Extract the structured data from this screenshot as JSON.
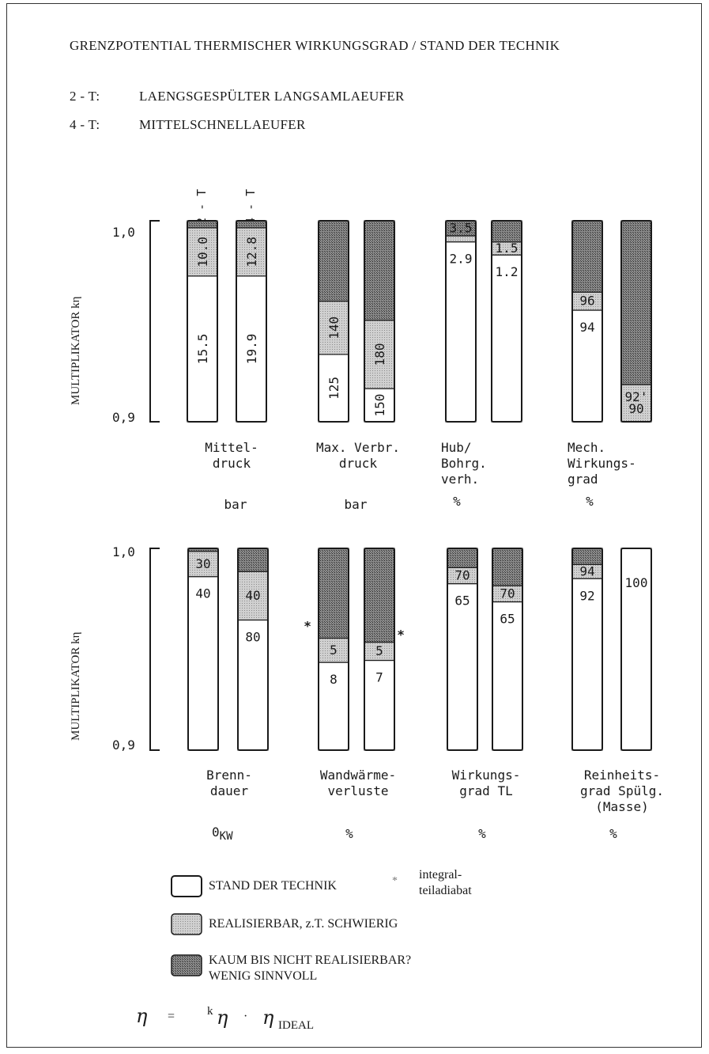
{
  "header": {
    "title": "GRENZPOTENTIAL THERMISCHER WIRKUNGSGRAD / STAND DER TECHNIK",
    "line2_key": "2 - T:",
    "line2_text": "LAENGSGESPÜLTER LANGSAMLAEUFER",
    "line4_key": "4 - T:",
    "line4_text": "MITTELSCHNELLAEUFER"
  },
  "series_tags": {
    "two_stroke": "2 - T",
    "four_stroke": "4 - T"
  },
  "colors": {
    "stand": "#ffffff",
    "realisierbar": "#c8c8c8",
    "kaum": "#6e6e6e",
    "outline": "#1a1a1a"
  },
  "chart_data": [
    {
      "type": "bar",
      "stacked": true,
      "ylabel": "MULTIPLIKATOR kη",
      "ylim": [
        0.9,
        1.0
      ],
      "yticks": [
        "1,0",
        "0,9"
      ],
      "groups": [
        {
          "label": "Mittel-\ndruck",
          "unit": "bar",
          "bars": [
            {
              "segments": [
                {
                  "cat": "stand",
                  "to": 0.9725,
                  "label": "15.5"
                },
                {
                  "cat": "realisierbar",
                  "to": 0.9965,
                  "label": "10.0"
                },
                {
                  "cat": "kaum",
                  "to": 1.0,
                  "label": ""
                }
              ],
              "rotated": true
            },
            {
              "segments": [
                {
                  "cat": "stand",
                  "to": 0.9725,
                  "label": "19.9"
                },
                {
                  "cat": "realisierbar",
                  "to": 0.9965,
                  "label": "12.8"
                },
                {
                  "cat": "kaum",
                  "to": 1.0,
                  "label": ""
                }
              ],
              "rotated": true
            }
          ]
        },
        {
          "label": "Max. Verbr.\ndruck",
          "unit": "bar",
          "bars": [
            {
              "segments": [
                {
                  "cat": "stand",
                  "to": 0.9335,
                  "label": "125"
                },
                {
                  "cat": "realisierbar",
                  "to": 0.96,
                  "label": "140"
                },
                {
                  "cat": "kaum",
                  "to": 1.0,
                  "label": ""
                }
              ],
              "rotated": true
            },
            {
              "segments": [
                {
                  "cat": "stand",
                  "to": 0.9165,
                  "label": "150"
                },
                {
                  "cat": "realisierbar",
                  "to": 0.9505,
                  "label": "180"
                },
                {
                  "cat": "kaum",
                  "to": 1.0,
                  "label": ""
                }
              ],
              "rotated": true
            }
          ]
        },
        {
          "label": "Hub/\nBohrg.\nverh.",
          "unit": "%",
          "bars": [
            {
              "segments": [
                {
                  "cat": "stand",
                  "to": 0.9895,
                  "label": "2.9"
                },
                {
                  "cat": "realisierbar",
                  "to": 0.9925,
                  "label": ""
                },
                {
                  "cat": "kaum",
                  "to": 1.0,
                  "label": "3.5"
                }
              ],
              "rotated": false
            },
            {
              "segments": [
                {
                  "cat": "stand",
                  "to": 0.983,
                  "label": "1.2"
                },
                {
                  "cat": "realisierbar",
                  "to": 0.9895,
                  "label": "1.5"
                },
                {
                  "cat": "kaum",
                  "to": 1.0,
                  "label": ""
                }
              ],
              "rotated": false
            }
          ]
        },
        {
          "label": "Mech.\nWirkungs-\ngrad",
          "unit": "%",
          "bars": [
            {
              "segments": [
                {
                  "cat": "stand",
                  "to": 0.9555,
                  "label": "94"
                },
                {
                  "cat": "realisierbar",
                  "to": 0.9645,
                  "label": "96"
                },
                {
                  "cat": "kaum",
                  "to": 1.0,
                  "label": ""
                }
              ],
              "rotated": false
            },
            {
              "segments": [
                {
                  "cat": "stand",
                  "to": 0.9,
                  "label": ""
                },
                {
                  "cat": "realisierbar",
                  "to": 0.9185,
                  "label": "92'\n90"
                },
                {
                  "cat": "kaum",
                  "to": 1.0,
                  "label": ""
                }
              ],
              "rotated": false
            }
          ]
        }
      ]
    },
    {
      "type": "bar",
      "stacked": true,
      "ylabel": "MULTIPLIKATOR kη",
      "ylim": [
        0.9,
        1.0
      ],
      "yticks": [
        "1,0",
        "0,9"
      ],
      "groups": [
        {
          "label": "Brenn-\ndauer",
          "unit": "0KW",
          "unit_main": "0",
          "unit_sub": "KW",
          "bars": [
            {
              "segments": [
                {
                  "cat": "stand",
                  "to": 0.986,
                  "label": "40"
                },
                {
                  "cat": "realisierbar",
                  "to": 0.9985,
                  "label": "30"
                },
                {
                  "cat": "kaum",
                  "to": 1.0,
                  "label": ""
                }
              ],
              "rotated": false
            },
            {
              "segments": [
                {
                  "cat": "stand",
                  "to": 0.9645,
                  "label": "80"
                },
                {
                  "cat": "realisierbar",
                  "to": 0.9885,
                  "label": "40"
                },
                {
                  "cat": "kaum",
                  "to": 1.0,
                  "label": ""
                }
              ],
              "rotated": false
            }
          ]
        },
        {
          "label": "Wandwärme-\nverluste",
          "unit": "%",
          "bars": [
            {
              "segments": [
                {
                  "cat": "stand",
                  "to": 0.9435,
                  "label": "8"
                },
                {
                  "cat": "realisierbar",
                  "to": 0.9555,
                  "label": "5"
                },
                {
                  "cat": "kaum",
                  "to": 1.0,
                  "label": ""
                }
              ],
              "rotated": false,
              "star": true
            },
            {
              "segments": [
                {
                  "cat": "stand",
                  "to": 0.9445,
                  "label": "7"
                },
                {
                  "cat": "realisierbar",
                  "to": 0.9535,
                  "label": "5"
                },
                {
                  "cat": "kaum",
                  "to": 1.0,
                  "label": ""
                }
              ],
              "rotated": false,
              "star": true
            }
          ]
        },
        {
          "label": "Wirkungs-\ngrad TL",
          "unit": "%",
          "bars": [
            {
              "segments": [
                {
                  "cat": "stand",
                  "to": 0.9825,
                  "label": "65"
                },
                {
                  "cat": "realisierbar",
                  "to": 0.9905,
                  "label": "70"
                },
                {
                  "cat": "kaum",
                  "to": 1.0,
                  "label": ""
                }
              ],
              "rotated": false
            },
            {
              "segments": [
                {
                  "cat": "stand",
                  "to": 0.9735,
                  "label": "65"
                },
                {
                  "cat": "realisierbar",
                  "to": 0.9815,
                  "label": "70"
                },
                {
                  "cat": "kaum",
                  "to": 1.0,
                  "label": ""
                }
              ],
              "rotated": false
            }
          ]
        },
        {
          "label": "Reinheits-\ngrad Spülg.\n(Masse)",
          "unit": "%",
          "bars": [
            {
              "segments": [
                {
                  "cat": "stand",
                  "to": 0.985,
                  "label": "92"
                },
                {
                  "cat": "realisierbar",
                  "to": 0.992,
                  "label": "94"
                },
                {
                  "cat": "kaum",
                  "to": 1.0,
                  "label": ""
                }
              ],
              "rotated": false
            },
            {
              "segments": [
                {
                  "cat": "stand",
                  "to": 1.0,
                  "label": "100"
                }
              ],
              "rotated": false,
              "label_top": true
            }
          ]
        }
      ]
    }
  ],
  "legend": {
    "stand": "STAND DER TECHNIK",
    "realisierbar": "REALISIERBAR, z.T. SCHWIERIG",
    "kaum": "KAUM BIS NICHT REALISIERBAR?\nWENIG SINNVOLL",
    "star_symbol": "*",
    "star_text": "integral-\nteiladiabat"
  },
  "formula": {
    "lhs": "η",
    "eq": "=",
    "k": "k",
    "eta": "η",
    "dot": "·",
    "eta_ideal": "η",
    "ideal": "IDEAL"
  }
}
